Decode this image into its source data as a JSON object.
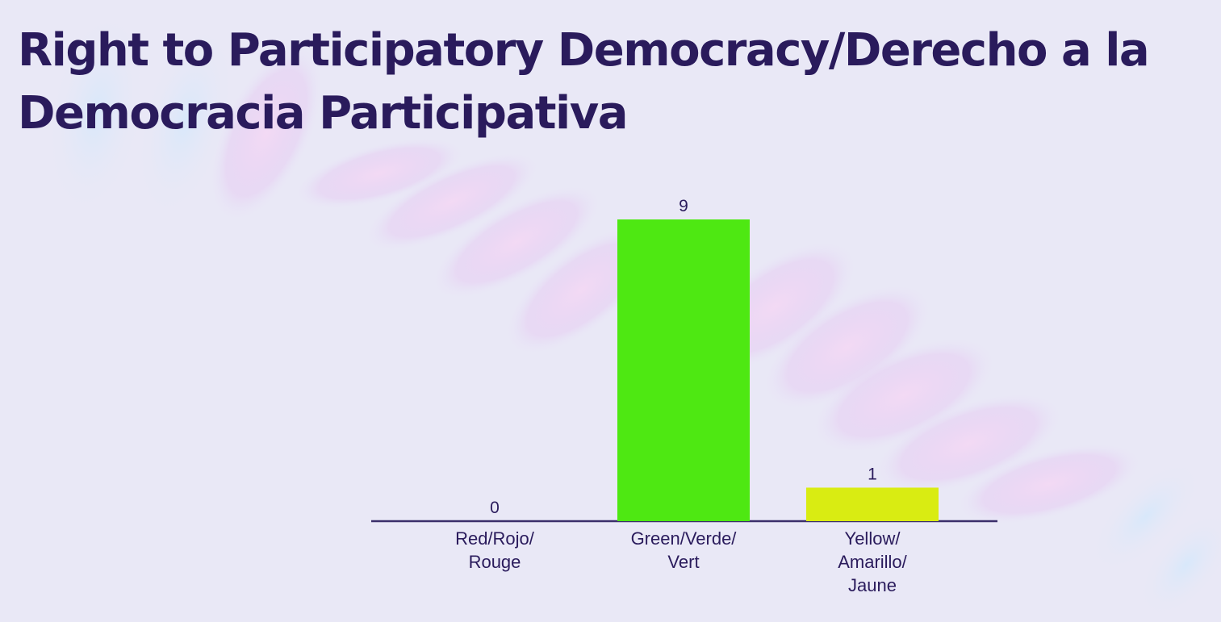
{
  "slide": {
    "title": "Right to Participatory Democracy/Derecho a la Democracia Participativa"
  },
  "colors": {
    "background": "#e9e8f6",
    "title_text": "#2a1b5c",
    "axis_line": "#3b2f6b"
  },
  "chart_data": {
    "type": "bar",
    "categories": [
      [
        "Red/Rojo/",
        "Rouge"
      ],
      [
        "Green/Verde/",
        "Vert"
      ],
      [
        "Yellow/",
        "Amarillo/",
        "Jaune"
      ]
    ],
    "values": [
      0,
      9,
      1
    ],
    "bar_colors": [
      "#e53935",
      "#4ee812",
      "#d9ec12"
    ],
    "data_labels": [
      "0",
      "9",
      "1"
    ],
    "ylim": [
      0,
      9
    ],
    "grid": false,
    "legend": "none",
    "title": "",
    "xlabel": "",
    "ylabel": ""
  }
}
